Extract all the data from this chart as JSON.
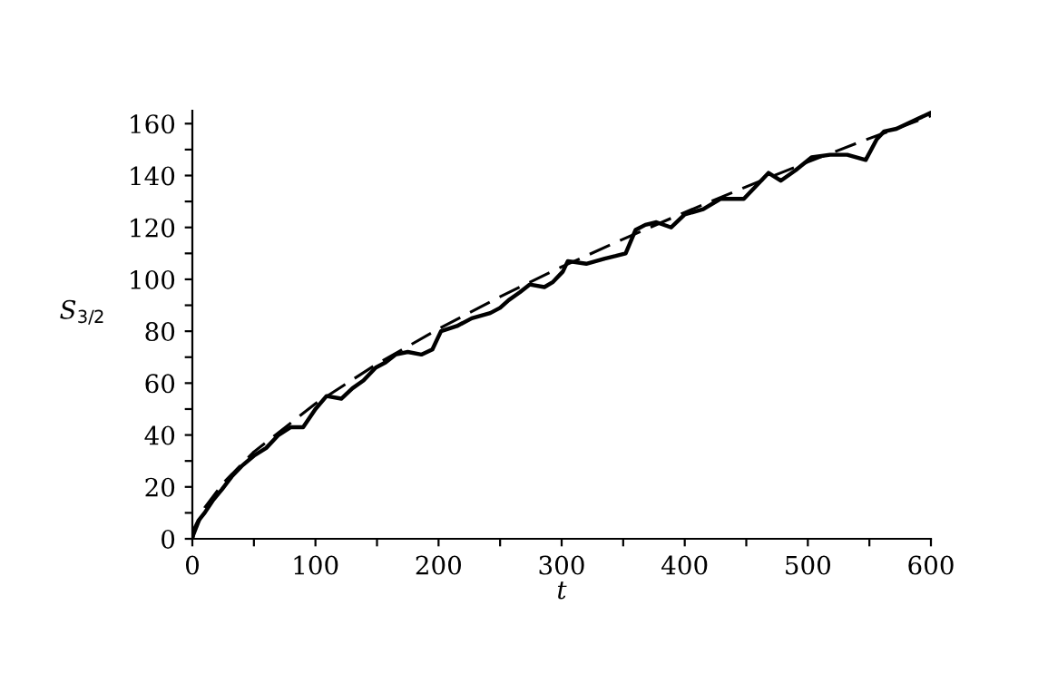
{
  "chart_data": {
    "type": "line",
    "xlabel": "t",
    "ylabel": "S$_{3/2}$",
    "xlim": [
      0,
      600
    ],
    "ylim": [
      0,
      165
    ],
    "xticks": [
      0,
      {
        "value": 50,
        "label": null
      },
      100,
      {
        "value": 150,
        "label": null
      },
      200,
      {
        "value": 250,
        "label": null
      },
      300,
      {
        "value": 350,
        "label": null
      },
      400,
      {
        "value": 450,
        "label": null
      },
      500,
      {
        "value": 550,
        "label": null
      },
      600
    ],
    "yticks": [
      0,
      {
        "value": 10,
        "label": null
      },
      20,
      {
        "value": 30,
        "label": null
      },
      40,
      {
        "value": 50,
        "label": null
      },
      60,
      {
        "value": 70,
        "label": null
      },
      80,
      {
        "value": 90,
        "label": null
      },
      100,
      {
        "value": 110,
        "label": null
      },
      120,
      {
        "value": 130,
        "label": null
      },
      140,
      {
        "value": 150,
        "label": null
      },
      160
    ],
    "grid": false,
    "legend": false,
    "series": [
      {
        "color": "#000000",
        "line_style": "solid",
        "x": [
          0,
          1,
          5,
          10,
          17,
          24,
          32,
          40,
          50,
          60,
          70,
          80,
          90,
          100,
          109,
          121,
          130,
          139,
          149,
          157,
          165,
          175,
          186,
          195,
          202,
          215,
          227,
          242,
          250,
          257,
          266,
          274,
          286,
          293,
          301,
          305,
          320,
          335,
          344,
          352,
          360,
          368,
          377,
          389,
          400,
          415,
          429,
          448,
          458,
          468,
          478,
          490,
          503,
          518,
          532,
          547,
          556,
          562,
          572,
          581,
          590,
          599
        ],
        "values": [
          0,
          3,
          7,
          10,
          15,
          19,
          24,
          28,
          32,
          35,
          40,
          43,
          43,
          50,
          55,
          54,
          58,
          61,
          66,
          68,
          71,
          72,
          71,
          73,
          80,
          82,
          85,
          87,
          89,
          92,
          95,
          98,
          97,
          99,
          103,
          107,
          106,
          108,
          109,
          110,
          119,
          121,
          122,
          120,
          125,
          127,
          131,
          131,
          136,
          141,
          138,
          142,
          147,
          148,
          148,
          146,
          154,
          157,
          158,
          160,
          162,
          164
        ]
      },
      {
        "color": "#000000",
        "line_style": "dashed",
        "x": [
          0,
          10,
          25,
          50,
          100,
          150,
          200,
          250,
          300,
          350,
          400,
          450,
          500,
          550,
          600
        ],
        "values": [
          0,
          12.0,
          21.5,
          33.5,
          52.1,
          67.4,
          80.9,
          93.3,
          104.8,
          115.5,
          125.8,
          135.7,
          145.2,
          154.3,
          163
        ]
      }
    ]
  }
}
